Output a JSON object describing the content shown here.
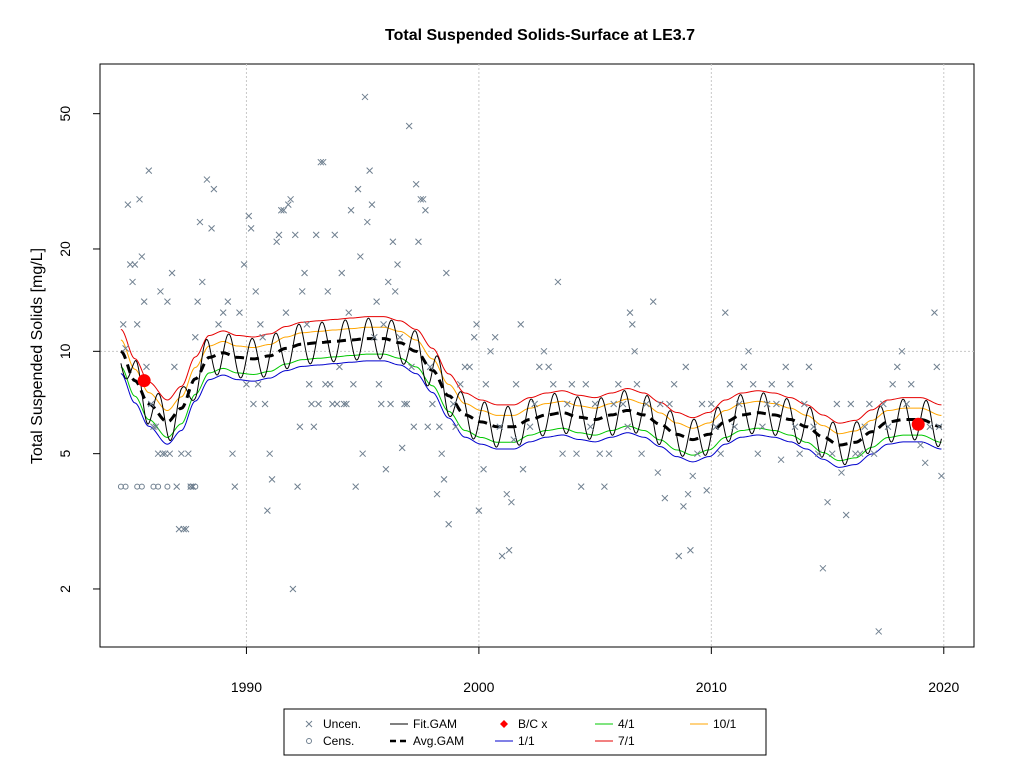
{
  "chart_data": {
    "type": "scatter",
    "title": "Total Suspended Solids-Surface at LE3.7",
    "xlabel": "",
    "ylabel": "Total Suspended Solids [mg/L]",
    "y_scale": "log",
    "xlim": [
      1983.7,
      2021.3
    ],
    "ylim": [
      1.35,
      70
    ],
    "x_ticks": [
      1990,
      2000,
      2010,
      2020
    ],
    "y_ticks": [
      2,
      5,
      10,
      20,
      50
    ],
    "grid": true,
    "reference_line_y": 10,
    "legend_placement": "bottom-center",
    "legend": [
      {
        "label": "Uncen.",
        "symbol": "x",
        "color": "#708090"
      },
      {
        "label": "Cens.",
        "symbol": "circle",
        "color": "#708090"
      },
      {
        "label": "Fit.GAM",
        "symbol": "line",
        "color": "#000000"
      },
      {
        "label": "Avg.GAM",
        "symbol": "dashed",
        "color": "#000000"
      },
      {
        "label": "B/C x",
        "symbol": "diamond",
        "color": "#ff0000"
      },
      {
        "label": "1/1",
        "symbol": "line",
        "color": "#0000cd"
      },
      {
        "label": "4/1",
        "symbol": "line",
        "color": "#00c800"
      },
      {
        "label": "7/1",
        "symbol": "line",
        "color": "#e60000"
      },
      {
        "label": "10/1",
        "symbol": "line",
        "color": "#ffa500"
      }
    ],
    "uncensored_points": [
      [
        1984.7,
        12
      ],
      [
        1984.8,
        10.2
      ],
      [
        1984.9,
        27
      ],
      [
        1985.0,
        18
      ],
      [
        1985.1,
        16
      ],
      [
        1985.2,
        18
      ],
      [
        1985.3,
        12
      ],
      [
        1985.4,
        28
      ],
      [
        1985.5,
        19
      ],
      [
        1985.6,
        14
      ],
      [
        1985.7,
        9
      ],
      [
        1985.8,
        34
      ],
      [
        1985.9,
        7
      ],
      [
        1986.0,
        6
      ],
      [
        1986.1,
        6
      ],
      [
        1986.2,
        5
      ],
      [
        1986.3,
        15
      ],
      [
        1986.4,
        5
      ],
      [
        1986.5,
        5
      ],
      [
        1986.6,
        14
      ],
      [
        1986.7,
        5
      ],
      [
        1986.8,
        17
      ],
      [
        1986.9,
        9
      ],
      [
        1987.0,
        4
      ],
      [
        1987.1,
        3
      ],
      [
        1987.2,
        5
      ],
      [
        1987.3,
        3
      ],
      [
        1987.4,
        3
      ],
      [
        1987.5,
        5
      ],
      [
        1987.6,
        4
      ],
      [
        1987.7,
        4
      ],
      [
        1987.8,
        11
      ],
      [
        1987.9,
        14
      ],
      [
        1988.0,
        24
      ],
      [
        1988.1,
        16
      ],
      [
        1988.3,
        32
      ],
      [
        1988.5,
        23
      ],
      [
        1988.6,
        30
      ],
      [
        1988.8,
        12
      ],
      [
        1989.0,
        13
      ],
      [
        1989.2,
        14
      ],
      [
        1989.4,
        5
      ],
      [
        1989.5,
        4
      ],
      [
        1989.7,
        13
      ],
      [
        1989.9,
        18
      ],
      [
        1990.0,
        8
      ],
      [
        1990.1,
        25
      ],
      [
        1990.2,
        23
      ],
      [
        1990.3,
        7
      ],
      [
        1990.4,
        15
      ],
      [
        1990.5,
        8
      ],
      [
        1990.6,
        12
      ],
      [
        1990.7,
        11
      ],
      [
        1990.8,
        7
      ],
      [
        1990.9,
        3.4
      ],
      [
        1991.0,
        5
      ],
      [
        1991.1,
        4.2
      ],
      [
        1991.3,
        21
      ],
      [
        1991.4,
        22
      ],
      [
        1991.5,
        26
      ],
      [
        1991.6,
        26
      ],
      [
        1991.7,
        13
      ],
      [
        1991.8,
        27
      ],
      [
        1991.9,
        28
      ],
      [
        1992.0,
        2
      ],
      [
        1992.1,
        22
      ],
      [
        1992.2,
        4
      ],
      [
        1992.3,
        6
      ],
      [
        1992.4,
        15
      ],
      [
        1992.5,
        17
      ],
      [
        1992.6,
        12
      ],
      [
        1992.7,
        8
      ],
      [
        1992.8,
        7
      ],
      [
        1992.9,
        6
      ],
      [
        1993.0,
        22
      ],
      [
        1993.1,
        7
      ],
      [
        1993.2,
        36
      ],
      [
        1993.3,
        36
      ],
      [
        1993.4,
        8
      ],
      [
        1993.5,
        15
      ],
      [
        1993.6,
        8
      ],
      [
        1993.7,
        7
      ],
      [
        1993.8,
        22
      ],
      [
        1993.9,
        7
      ],
      [
        1994.0,
        9
      ],
      [
        1994.1,
        17
      ],
      [
        1994.2,
        7
      ],
      [
        1994.3,
        7
      ],
      [
        1994.4,
        13
      ],
      [
        1994.5,
        26
      ],
      [
        1994.6,
        8
      ],
      [
        1994.7,
        4
      ],
      [
        1994.8,
        30
      ],
      [
        1994.9,
        19
      ],
      [
        1995.0,
        5
      ],
      [
        1995.1,
        56
      ],
      [
        1995.2,
        24
      ],
      [
        1995.3,
        34
      ],
      [
        1995.4,
        27
      ],
      [
        1995.5,
        11
      ],
      [
        1995.6,
        14
      ],
      [
        1995.7,
        8
      ],
      [
        1995.8,
        7
      ],
      [
        1995.9,
        12
      ],
      [
        1996.0,
        4.5
      ],
      [
        1996.1,
        16
      ],
      [
        1996.2,
        7
      ],
      [
        1996.3,
        21
      ],
      [
        1996.4,
        15
      ],
      [
        1996.5,
        18
      ],
      [
        1996.6,
        11
      ],
      [
        1996.7,
        5.2
      ],
      [
        1996.8,
        7
      ],
      [
        1996.9,
        7
      ],
      [
        1997.0,
        46
      ],
      [
        1997.1,
        9
      ],
      [
        1997.2,
        6
      ],
      [
        1997.3,
        31
      ],
      [
        1997.4,
        21
      ],
      [
        1997.5,
        28
      ],
      [
        1997.6,
        28
      ],
      [
        1997.7,
        26
      ],
      [
        1997.8,
        6
      ],
      [
        1997.9,
        9
      ],
      [
        1998.0,
        7
      ],
      [
        1998.2,
        3.8
      ],
      [
        1998.3,
        6
      ],
      [
        1998.4,
        5
      ],
      [
        1998.5,
        4.2
      ],
      [
        1998.6,
        17
      ],
      [
        1998.7,
        3.1
      ],
      [
        1998.9,
        7
      ],
      [
        1999.0,
        6
      ],
      [
        1999.2,
        8
      ],
      [
        1999.4,
        9
      ],
      [
        1999.6,
        9
      ],
      [
        1999.8,
        11
      ],
      [
        1999.9,
        12
      ],
      [
        2000.0,
        3.4
      ],
      [
        2000.2,
        4.5
      ],
      [
        2000.3,
        8
      ],
      [
        2000.5,
        10
      ],
      [
        2000.7,
        11
      ],
      [
        2000.9,
        6
      ],
      [
        2001.0,
        2.5
      ],
      [
        2001.2,
        3.8
      ],
      [
        2001.3,
        2.6
      ],
      [
        2001.4,
        3.6
      ],
      [
        2001.5,
        5.5
      ],
      [
        2001.6,
        8
      ],
      [
        2001.8,
        12
      ],
      [
        2001.9,
        4.5
      ],
      [
        2002.2,
        6
      ],
      [
        2002.4,
        7
      ],
      [
        2002.6,
        9
      ],
      [
        2002.8,
        10
      ],
      [
        2003.0,
        9
      ],
      [
        2003.2,
        8
      ],
      [
        2003.4,
        16
      ],
      [
        2003.6,
        5
      ],
      [
        2003.8,
        7
      ],
      [
        2004.0,
        8
      ],
      [
        2004.2,
        5
      ],
      [
        2004.4,
        4
      ],
      [
        2004.6,
        8
      ],
      [
        2004.8,
        6
      ],
      [
        2005.0,
        7
      ],
      [
        2005.2,
        5
      ],
      [
        2005.4,
        4
      ],
      [
        2005.6,
        5
      ],
      [
        2005.8,
        7
      ],
      [
        2006.0,
        8
      ],
      [
        2006.2,
        7
      ],
      [
        2006.4,
        6
      ],
      [
        2006.5,
        13
      ],
      [
        2006.6,
        12
      ],
      [
        2006.7,
        10
      ],
      [
        2006.8,
        8
      ],
      [
        2007.0,
        5
      ],
      [
        2007.2,
        7
      ],
      [
        2007.5,
        14
      ],
      [
        2007.7,
        4.4
      ],
      [
        2007.8,
        7
      ],
      [
        2008.0,
        3.7
      ],
      [
        2008.2,
        7
      ],
      [
        2008.4,
        8
      ],
      [
        2008.6,
        2.5
      ],
      [
        2008.8,
        3.5
      ],
      [
        2008.9,
        9
      ],
      [
        2009.0,
        3.8
      ],
      [
        2009.1,
        2.6
      ],
      [
        2009.2,
        4.3
      ],
      [
        2009.4,
        5
      ],
      [
        2009.6,
        7
      ],
      [
        2009.8,
        3.9
      ],
      [
        2010.0,
        7
      ],
      [
        2010.2,
        6
      ],
      [
        2010.4,
        5
      ],
      [
        2010.6,
        13
      ],
      [
        2010.8,
        8
      ],
      [
        2011.0,
        6
      ],
      [
        2011.2,
        7
      ],
      [
        2011.4,
        9
      ],
      [
        2011.6,
        10
      ],
      [
        2011.8,
        8
      ],
      [
        2012.0,
        5
      ],
      [
        2012.2,
        6
      ],
      [
        2012.4,
        7
      ],
      [
        2012.6,
        8
      ],
      [
        2012.8,
        7
      ],
      [
        2013.0,
        4.8
      ],
      [
        2013.2,
        9
      ],
      [
        2013.4,
        8
      ],
      [
        2013.6,
        6
      ],
      [
        2013.8,
        5
      ],
      [
        2014.0,
        7
      ],
      [
        2014.2,
        9
      ],
      [
        2014.4,
        6
      ],
      [
        2014.6,
        5
      ],
      [
        2014.8,
        2.3
      ],
      [
        2015.0,
        3.6
      ],
      [
        2015.2,
        5
      ],
      [
        2015.4,
        7
      ],
      [
        2015.6,
        4.4
      ],
      [
        2015.8,
        3.3
      ],
      [
        2016.0,
        7
      ],
      [
        2016.2,
        5
      ],
      [
        2016.4,
        5
      ],
      [
        2016.6,
        6
      ],
      [
        2016.8,
        7
      ],
      [
        2017.0,
        5
      ],
      [
        2017.2,
        1.5
      ],
      [
        2017.4,
        7
      ],
      [
        2017.6,
        6
      ],
      [
        2017.8,
        8
      ],
      [
        2018.0,
        9
      ],
      [
        2018.2,
        10
      ],
      [
        2018.4,
        7
      ],
      [
        2018.6,
        8
      ],
      [
        2018.8,
        6
      ],
      [
        2019.0,
        5.3
      ],
      [
        2019.2,
        4.7
      ],
      [
        2019.4,
        6
      ],
      [
        2019.6,
        13
      ],
      [
        2019.7,
        9
      ],
      [
        2019.8,
        6
      ],
      [
        2019.9,
        4.3
      ]
    ],
    "censored_points": [
      [
        1984.6,
        4
      ],
      [
        1984.8,
        4
      ],
      [
        1985.3,
        4
      ],
      [
        1985.5,
        4
      ],
      [
        1986.0,
        4
      ],
      [
        1986.2,
        4
      ],
      [
        1986.6,
        4
      ],
      [
        1987.6,
        4
      ],
      [
        1987.8,
        4
      ]
    ],
    "fit_gam": {
      "mean_anchors": [
        [
          1984.6,
          10
        ],
        [
          1985.2,
          8.2
        ],
        [
          1985.8,
          7
        ],
        [
          1986.6,
          6.2
        ],
        [
          1987.2,
          6.8
        ],
        [
          1987.8,
          8.3
        ],
        [
          1988.4,
          9.6
        ],
        [
          1989.0,
          9.9
        ],
        [
          1989.6,
          9.6
        ],
        [
          1990.3,
          9.5
        ],
        [
          1991.0,
          9.7
        ],
        [
          1991.7,
          10.2
        ],
        [
          1992.4,
          10.5
        ],
        [
          1993.1,
          10.6
        ],
        [
          1993.8,
          10.7
        ],
        [
          1994.5,
          10.8
        ],
        [
          1995.2,
          10.9
        ],
        [
          1995.9,
          10.9
        ],
        [
          1996.6,
          10.6
        ],
        [
          1997.3,
          10
        ],
        [
          1998.0,
          8.8
        ],
        [
          1998.7,
          7.4
        ],
        [
          1999.4,
          6.5
        ],
        [
          2000.1,
          6.2
        ],
        [
          2000.8,
          6
        ],
        [
          2001.5,
          6
        ],
        [
          2002.2,
          6.3
        ],
        [
          2002.9,
          6.5
        ],
        [
          2003.6,
          6.6
        ],
        [
          2004.3,
          6.4
        ],
        [
          2005.0,
          6.3
        ],
        [
          2005.7,
          6.5
        ],
        [
          2006.4,
          6.7
        ],
        [
          2007.1,
          6.5
        ],
        [
          2007.8,
          6.1
        ],
        [
          2008.5,
          5.7
        ],
        [
          2009.2,
          5.5
        ],
        [
          2009.9,
          5.7
        ],
        [
          2010.6,
          6.2
        ],
        [
          2011.3,
          6.5
        ],
        [
          2012.0,
          6.6
        ],
        [
          2012.7,
          6.5
        ],
        [
          2013.4,
          6.3
        ],
        [
          2014.1,
          6
        ],
        [
          2014.8,
          5.6
        ],
        [
          2015.5,
          5.3
        ],
        [
          2016.2,
          5.4
        ],
        [
          2016.9,
          5.8
        ],
        [
          2017.6,
          6.2
        ],
        [
          2018.3,
          6.3
        ],
        [
          2019.0,
          6.3
        ],
        [
          2019.9,
          6
        ]
      ],
      "seasonal_amplitude_log10": 0.06,
      "oscillations_per_year": 1
    },
    "avg_gam": {
      "points": [
        [
          1984.6,
          10
        ],
        [
          1985.2,
          8.2
        ],
        [
          1985.8,
          7
        ],
        [
          1986.6,
          6.2
        ],
        [
          1987.2,
          6.8
        ],
        [
          1987.8,
          8.3
        ],
        [
          1988.4,
          9.6
        ],
        [
          1989.0,
          9.9
        ],
        [
          1989.6,
          9.6
        ],
        [
          1990.3,
          9.5
        ],
        [
          1991.0,
          9.7
        ],
        [
          1991.7,
          10.2
        ],
        [
          1992.4,
          10.5
        ],
        [
          1993.1,
          10.6
        ],
        [
          1993.8,
          10.7
        ],
        [
          1994.5,
          10.8
        ],
        [
          1995.2,
          10.9
        ],
        [
          1995.9,
          10.9
        ],
        [
          1996.6,
          10.6
        ],
        [
          1997.3,
          10
        ],
        [
          1998.0,
          8.8
        ],
        [
          1998.7,
          7.4
        ],
        [
          1999.4,
          6.5
        ],
        [
          2000.1,
          6.2
        ],
        [
          2000.8,
          6
        ],
        [
          2001.5,
          6
        ],
        [
          2002.2,
          6.3
        ],
        [
          2002.9,
          6.5
        ],
        [
          2003.6,
          6.6
        ],
        [
          2004.3,
          6.4
        ],
        [
          2005.0,
          6.3
        ],
        [
          2005.7,
          6.5
        ],
        [
          2006.4,
          6.7
        ],
        [
          2007.1,
          6.5
        ],
        [
          2007.8,
          6.1
        ],
        [
          2008.5,
          5.7
        ],
        [
          2009.2,
          5.5
        ],
        [
          2009.9,
          5.7
        ],
        [
          2010.6,
          6.2
        ],
        [
          2011.3,
          6.5
        ],
        [
          2012.0,
          6.6
        ],
        [
          2012.7,
          6.5
        ],
        [
          2013.4,
          6.3
        ],
        [
          2014.1,
          6
        ],
        [
          2014.8,
          5.6
        ],
        [
          2015.5,
          5.3
        ],
        [
          2016.2,
          5.4
        ],
        [
          2016.9,
          5.8
        ],
        [
          2017.6,
          6.2
        ],
        [
          2018.3,
          6.3
        ],
        [
          2019.0,
          6.3
        ],
        [
          2019.9,
          6
        ]
      ]
    },
    "seasonal_lines": [
      {
        "name": "1/1",
        "color": "#0000cd",
        "factor": 0.86
      },
      {
        "name": "4/1",
        "color": "#00c800",
        "factor": 0.9
      },
      {
        "name": "7/1",
        "color": "#e60000",
        "factor": 1.16
      },
      {
        "name": "10/1",
        "color": "#ffa500",
        "factor": 1.08
      }
    ],
    "bc_points": [
      [
        1985.6,
        8.2
      ],
      [
        2018.9,
        6.1
      ]
    ]
  }
}
